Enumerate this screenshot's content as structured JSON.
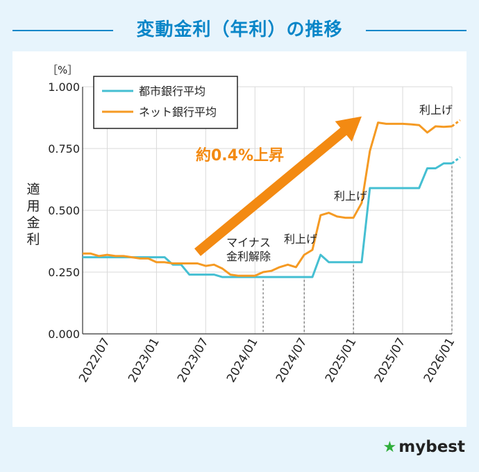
{
  "title": "変動金利（年利）の推移",
  "brand": {
    "star_icon": "★",
    "name": "mybest"
  },
  "chart_data": {
    "type": "line",
    "unit_label": "［%］",
    "ylabel": "適用金利",
    "ylim": [
      0,
      1.0
    ],
    "yticks": [
      "0.000",
      "0.250",
      "0.500",
      "0.750",
      "1.000"
    ],
    "ytick_values": [
      0,
      0.25,
      0.5,
      0.75,
      1.0
    ],
    "xlim": [
      "2022-04",
      "2026-01"
    ],
    "xticks": [
      "2022/07",
      "2023/01",
      "2023/07",
      "2024/01",
      "2024/07",
      "2025/01",
      "2025/07",
      "2026/01"
    ],
    "xtick_months": [
      "2022-07",
      "2023-01",
      "2023-07",
      "2024-01",
      "2024-07",
      "2025-01",
      "2025-07",
      "2026-01"
    ],
    "grid": true,
    "legend_position": "top-left",
    "series": [
      {
        "name": "都市銀行平均",
        "color": "#45bfd2",
        "points": [
          [
            "2022-04",
            0.31
          ],
          [
            "2022-05",
            0.31
          ],
          [
            "2022-06",
            0.31
          ],
          [
            "2022-07",
            0.31
          ],
          [
            "2022-08",
            0.31
          ],
          [
            "2022-09",
            0.31
          ],
          [
            "2022-10",
            0.31
          ],
          [
            "2022-11",
            0.31
          ],
          [
            "2022-12",
            0.31
          ],
          [
            "2023-01",
            0.31
          ],
          [
            "2023-02",
            0.31
          ],
          [
            "2023-03",
            0.28
          ],
          [
            "2023-04",
            0.28
          ],
          [
            "2023-05",
            0.24
          ],
          [
            "2023-06",
            0.24
          ],
          [
            "2023-07",
            0.24
          ],
          [
            "2023-08",
            0.24
          ],
          [
            "2023-09",
            0.23
          ],
          [
            "2023-10",
            0.23
          ],
          [
            "2023-11",
            0.23
          ],
          [
            "2023-12",
            0.23
          ],
          [
            "2024-01",
            0.23
          ],
          [
            "2024-02",
            0.23
          ],
          [
            "2024-03",
            0.23
          ],
          [
            "2024-04",
            0.23
          ],
          [
            "2024-05",
            0.23
          ],
          [
            "2024-06",
            0.23
          ],
          [
            "2024-07",
            0.23
          ],
          [
            "2024-08",
            0.23
          ],
          [
            "2024-09",
            0.32
          ],
          [
            "2024-10",
            0.29
          ],
          [
            "2024-11",
            0.29
          ],
          [
            "2024-12",
            0.29
          ],
          [
            "2025-01",
            0.29
          ],
          [
            "2025-02",
            0.29
          ],
          [
            "2025-03",
            0.59
          ],
          [
            "2025-04",
            0.59
          ],
          [
            "2025-05",
            0.59
          ],
          [
            "2025-06",
            0.59
          ],
          [
            "2025-07",
            0.59
          ],
          [
            "2025-08",
            0.59
          ],
          [
            "2025-09",
            0.59
          ],
          [
            "2025-10",
            0.67
          ],
          [
            "2025-11",
            0.67
          ],
          [
            "2025-12",
            0.69
          ],
          [
            "2026-01",
            0.69
          ]
        ],
        "projection": [
          [
            "2026-01",
            0.69
          ],
          [
            "2026-02",
            0.715
          ]
        ]
      },
      {
        "name": "ネット銀行平均",
        "color": "#f59a23",
        "points": [
          [
            "2022-04",
            0.325
          ],
          [
            "2022-05",
            0.325
          ],
          [
            "2022-06",
            0.315
          ],
          [
            "2022-07",
            0.32
          ],
          [
            "2022-08",
            0.315
          ],
          [
            "2022-09",
            0.315
          ],
          [
            "2022-10",
            0.31
          ],
          [
            "2022-11",
            0.305
          ],
          [
            "2022-12",
            0.305
          ],
          [
            "2023-01",
            0.29
          ],
          [
            "2023-02",
            0.29
          ],
          [
            "2023-03",
            0.285
          ],
          [
            "2023-04",
            0.285
          ],
          [
            "2023-05",
            0.285
          ],
          [
            "2023-06",
            0.285
          ],
          [
            "2023-07",
            0.275
          ],
          [
            "2023-08",
            0.28
          ],
          [
            "2023-09",
            0.265
          ],
          [
            "2023-10",
            0.24
          ],
          [
            "2023-11",
            0.235
          ],
          [
            "2023-12",
            0.235
          ],
          [
            "2024-01",
            0.235
          ],
          [
            "2024-02",
            0.25
          ],
          [
            "2024-03",
            0.255
          ],
          [
            "2024-04",
            0.27
          ],
          [
            "2024-05",
            0.28
          ],
          [
            "2024-06",
            0.27
          ],
          [
            "2024-07",
            0.32
          ],
          [
            "2024-08",
            0.34
          ],
          [
            "2024-09",
            0.48
          ],
          [
            "2024-10",
            0.49
          ],
          [
            "2024-11",
            0.475
          ],
          [
            "2024-12",
            0.47
          ],
          [
            "2025-01",
            0.47
          ],
          [
            "2025-02",
            0.53
          ],
          [
            "2025-03",
            0.74
          ],
          [
            "2025-04",
            0.855
          ],
          [
            "2025-05",
            0.85
          ],
          [
            "2025-06",
            0.85
          ],
          [
            "2025-07",
            0.85
          ],
          [
            "2025-08",
            0.848
          ],
          [
            "2025-09",
            0.845
          ],
          [
            "2025-10",
            0.815
          ],
          [
            "2025-11",
            0.84
          ],
          [
            "2025-12",
            0.838
          ],
          [
            "2026-01",
            0.84
          ]
        ],
        "projection": [
          [
            "2026-01",
            0.84
          ],
          [
            "2026-02",
            0.865
          ]
        ]
      }
    ],
    "markers": [
      {
        "month": "2024-02",
        "label": [
          "マイナス",
          "金利解除"
        ]
      },
      {
        "month": "2024-07",
        "label": [
          "利上げ"
        ]
      },
      {
        "month": "2025-01",
        "label": [
          "利上げ"
        ]
      },
      {
        "month": "2026-01",
        "label": [
          "利上げ"
        ]
      }
    ],
    "annotation": {
      "text": "約0.4%上昇",
      "color": "#f38a12"
    }
  }
}
